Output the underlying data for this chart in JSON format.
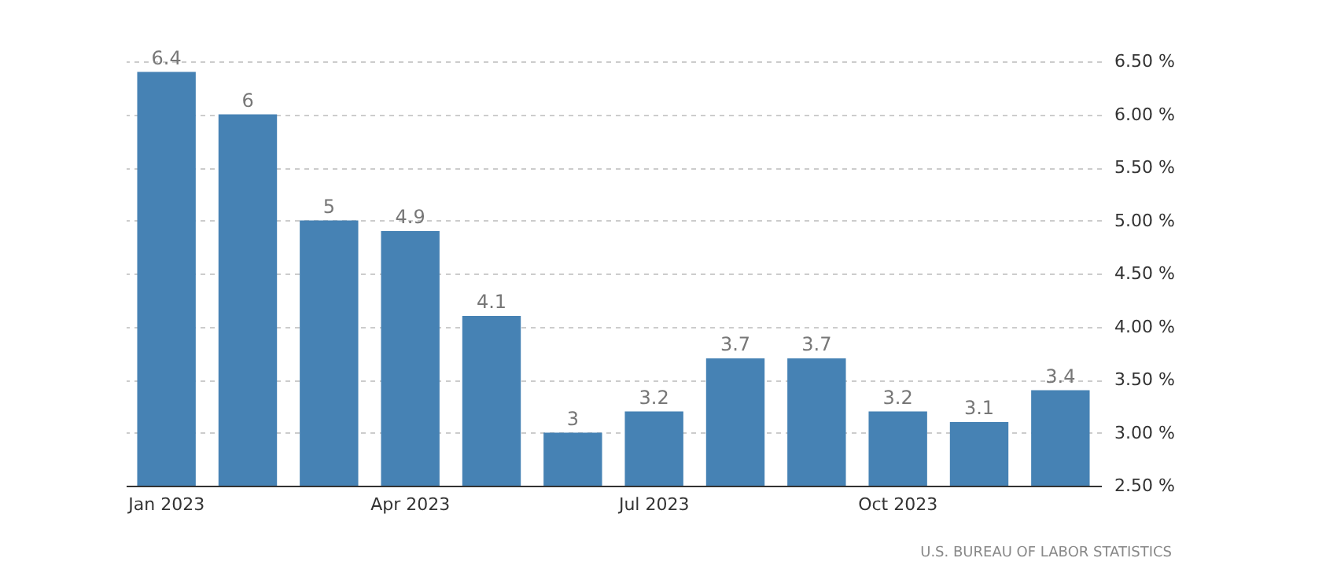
{
  "chart_data": {
    "type": "bar",
    "categories": [
      "Jan 2023",
      null,
      null,
      "Apr 2023",
      null,
      null,
      "Jul 2023",
      null,
      null,
      "Oct 2023",
      null,
      null
    ],
    "values": [
      6.4,
      6,
      5,
      4.9,
      4.1,
      3,
      3.2,
      3.7,
      3.7,
      3.2,
      3.1,
      3.4
    ],
    "color": "#4682b4",
    "ylim": [
      2.5,
      6.5
    ],
    "yticks": [
      {
        "value": 2.5,
        "label": "2.50 %"
      },
      {
        "value": 3.0,
        "label": "3.00 %"
      },
      {
        "value": 3.5,
        "label": "3.50 %"
      },
      {
        "value": 4.0,
        "label": "4.00 %"
      },
      {
        "value": 4.5,
        "label": "4.50 %"
      },
      {
        "value": 5.0,
        "label": "5.00 %"
      },
      {
        "value": 5.5,
        "label": "5.50 %"
      },
      {
        "value": 6.0,
        "label": "6.00 %"
      },
      {
        "value": 6.5,
        "label": "6.50 %"
      }
    ],
    "grid": "y",
    "data_labels": true,
    "annotations": [
      "U.S. BUREAU OF LABOR STATISTICS"
    ]
  }
}
